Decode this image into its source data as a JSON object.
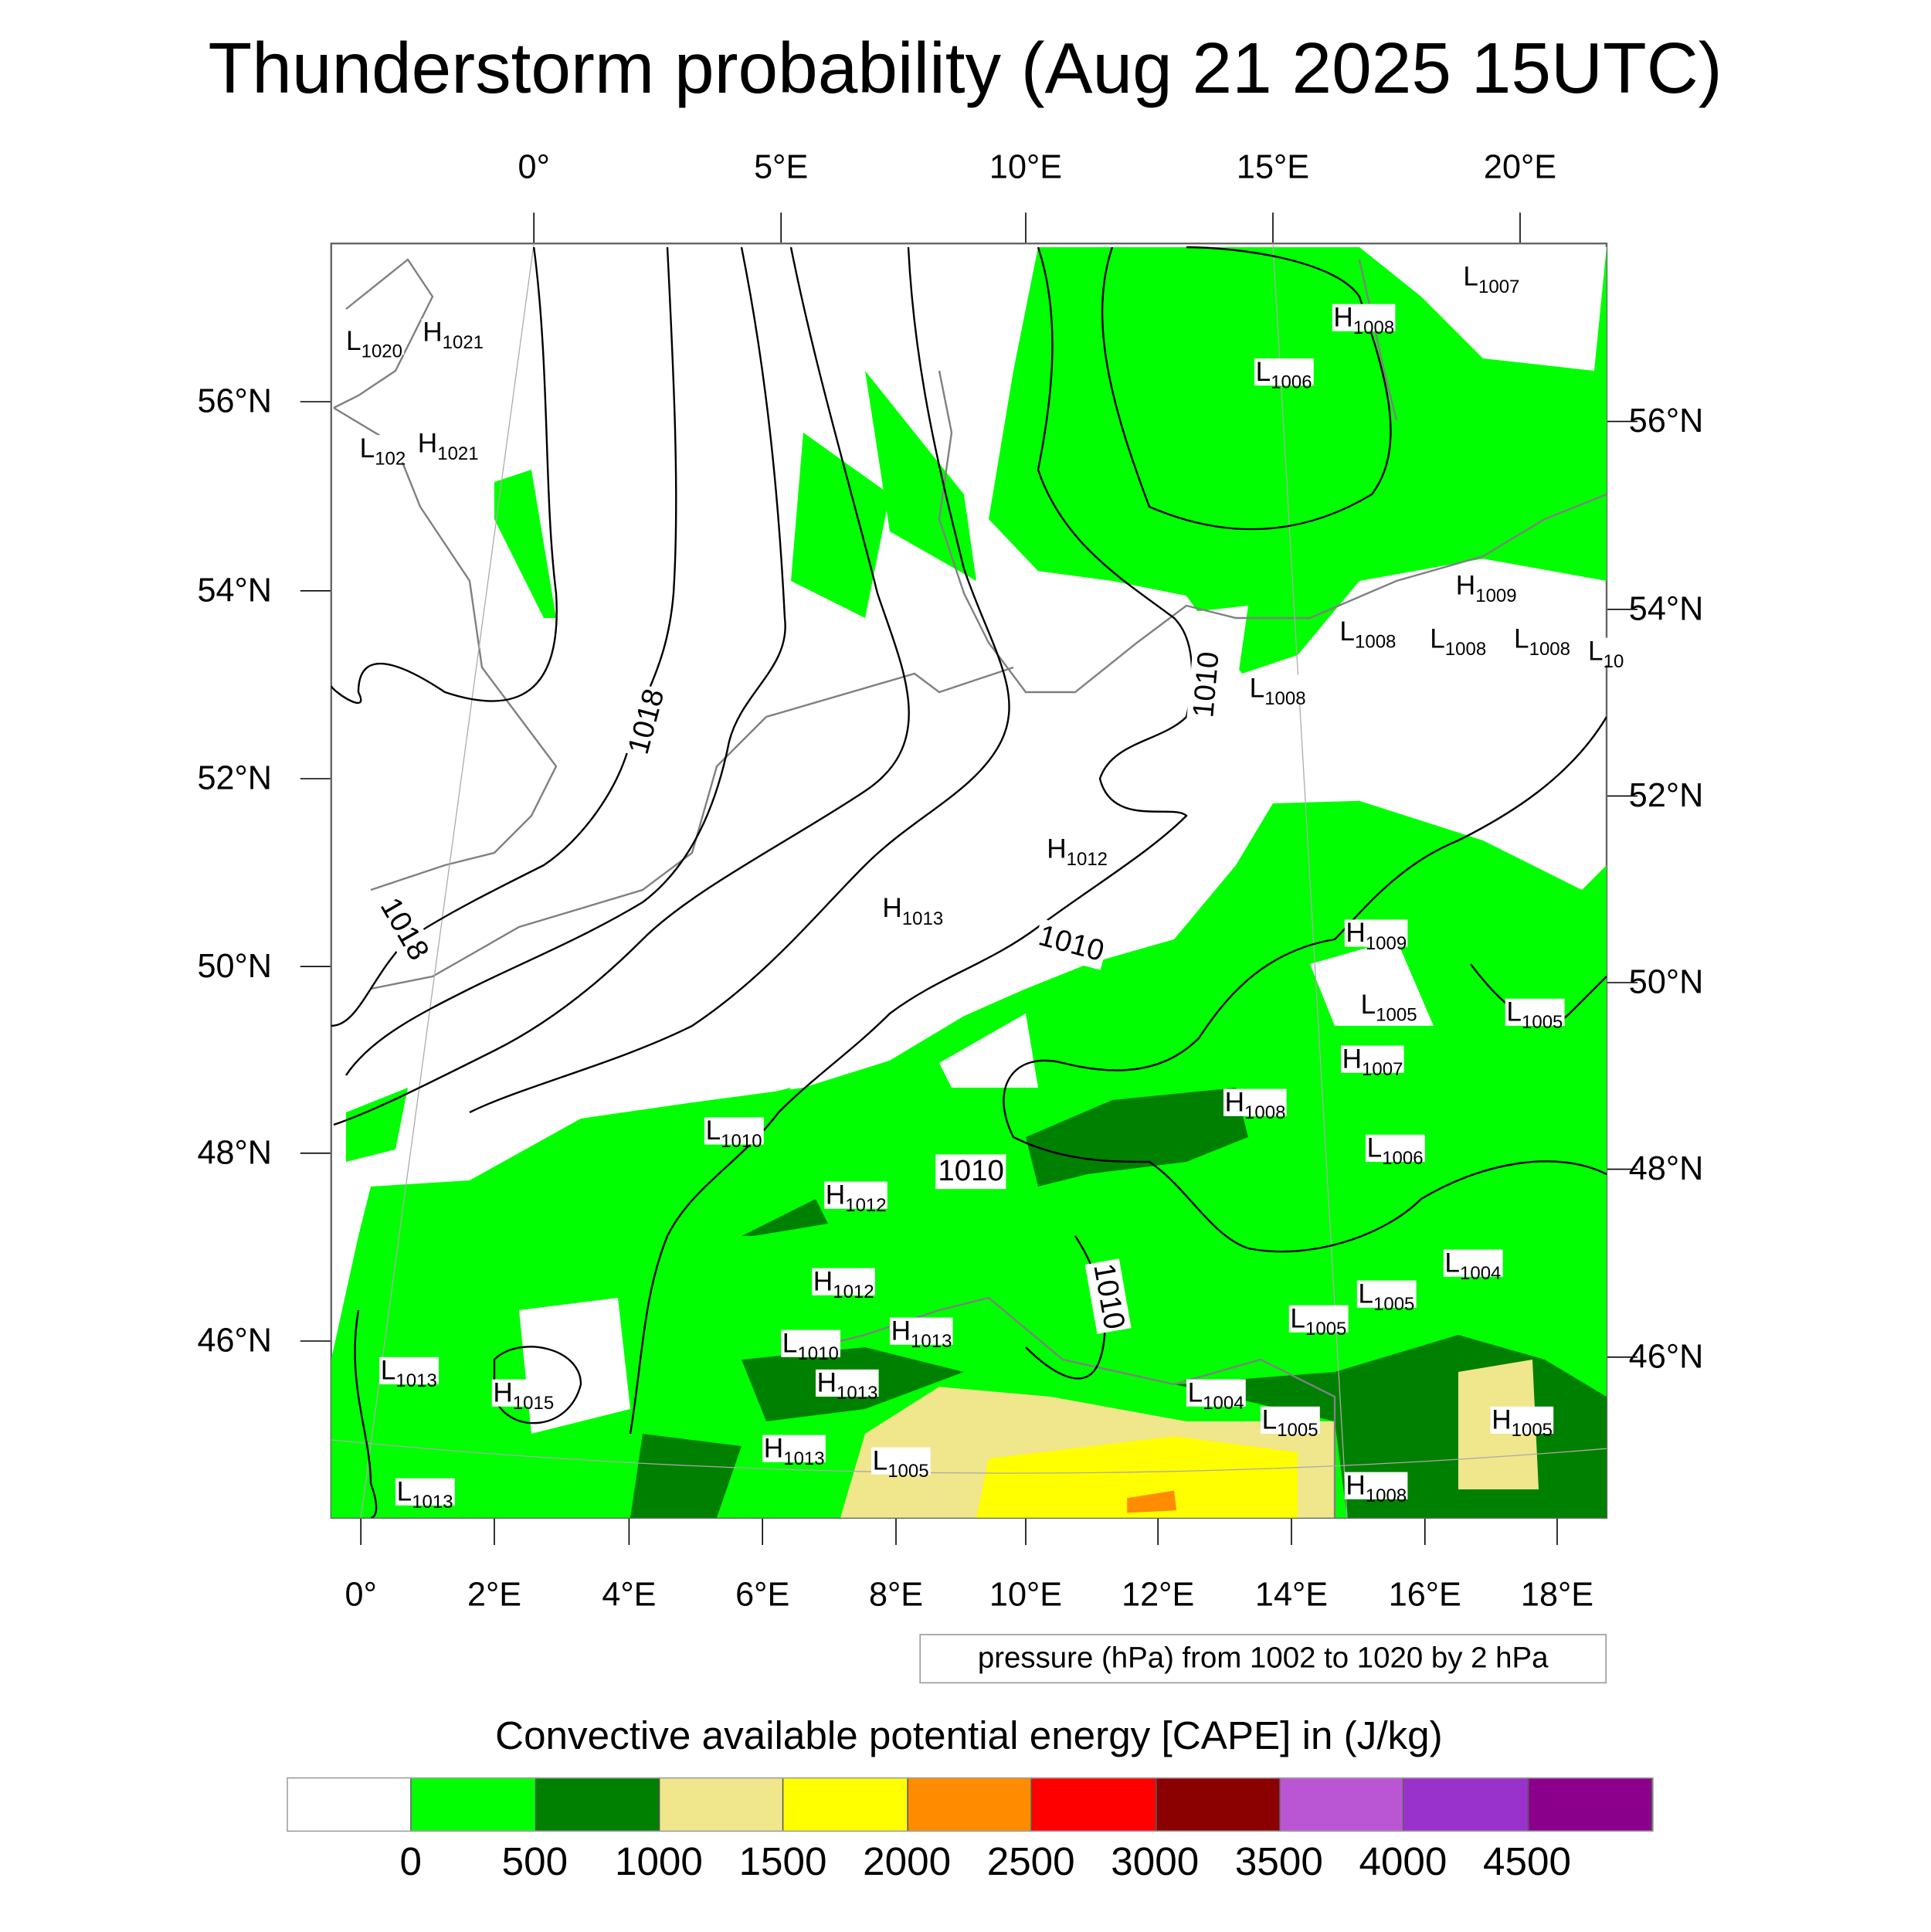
{
  "title": "Thunderstorm probability (Aug 21 2025 15UTC)",
  "axes": {
    "top": [
      "0°",
      "5°E",
      "10°E",
      "15°E",
      "20°E"
    ],
    "left": [
      "56°N",
      "54°N",
      "52°N",
      "50°N",
      "48°N",
      "46°N"
    ],
    "right": [
      "56°N",
      "54°N",
      "52°N",
      "50°N",
      "48°N",
      "46°N"
    ],
    "bottom": [
      "0°",
      "2°E",
      "4°E",
      "6°E",
      "8°E",
      "10°E",
      "12°E",
      "14°E",
      "16°E",
      "18°E"
    ]
  },
  "pressure_centers": [
    {
      "type": "L",
      "value": "1020"
    },
    {
      "type": "H",
      "value": "1021"
    },
    {
      "type": "L",
      "value": "102"
    },
    {
      "type": "H",
      "value": "1021"
    },
    {
      "type": "L",
      "value": "1007"
    },
    {
      "type": "H",
      "value": "1008"
    },
    {
      "type": "L",
      "value": "1006"
    },
    {
      "type": "H",
      "value": "1009"
    },
    {
      "type": "L",
      "value": "1008"
    },
    {
      "type": "L",
      "value": "1008"
    },
    {
      "type": "L",
      "value": "1008"
    },
    {
      "type": "L",
      "value": "10"
    },
    {
      "type": "L",
      "value": "1008"
    },
    {
      "type": "H",
      "value": "1012"
    },
    {
      "type": "H",
      "value": "1013"
    },
    {
      "type": "H",
      "value": "1009"
    },
    {
      "type": "L",
      "value": "1005"
    },
    {
      "type": "L",
      "value": "1005"
    },
    {
      "type": "H",
      "value": "1007"
    },
    {
      "type": "H",
      "value": "1008"
    },
    {
      "type": "L",
      "value": "1010"
    },
    {
      "type": "L",
      "value": "1006"
    },
    {
      "type": "H",
      "value": "1012"
    },
    {
      "type": "L",
      "value": "1004"
    },
    {
      "type": "H",
      "value": "1012"
    },
    {
      "type": "L",
      "value": "1005"
    },
    {
      "type": "L",
      "value": "1005"
    },
    {
      "type": "H",
      "value": "1013"
    },
    {
      "type": "L",
      "value": "1010"
    },
    {
      "type": "H",
      "value": "1013"
    },
    {
      "type": "L",
      "value": "1013"
    },
    {
      "type": "H",
      "value": "1015"
    },
    {
      "type": "L",
      "value": "1004"
    },
    {
      "type": "L",
      "value": "1005"
    },
    {
      "type": "H",
      "value": "1005"
    },
    {
      "type": "H",
      "value": "1013"
    },
    {
      "type": "L",
      "value": "1005"
    },
    {
      "type": "H",
      "value": "1008"
    },
    {
      "type": "L",
      "value": "1013"
    }
  ],
  "contour_labels": [
    "1018",
    "1018",
    "1010",
    "1010",
    "1010",
    "1010"
  ],
  "contour_note": "pressure (hPa) from 1002 to 1020 by 2 hPa",
  "colorbar": {
    "title": "Convective available potential energy [CAPE] in (J/kg)",
    "labels": [
      "0",
      "500",
      "1000",
      "1500",
      "2000",
      "2500",
      "3000",
      "3500",
      "4000",
      "4500"
    ],
    "colors": [
      "#ffffff",
      "#00ff00",
      "#008000",
      "#f0e68c",
      "#ffff00",
      "#ff8c00",
      "#ff0000",
      "#8b0000",
      "#ba55d3",
      "#9932cc",
      "#8b008b"
    ]
  }
}
